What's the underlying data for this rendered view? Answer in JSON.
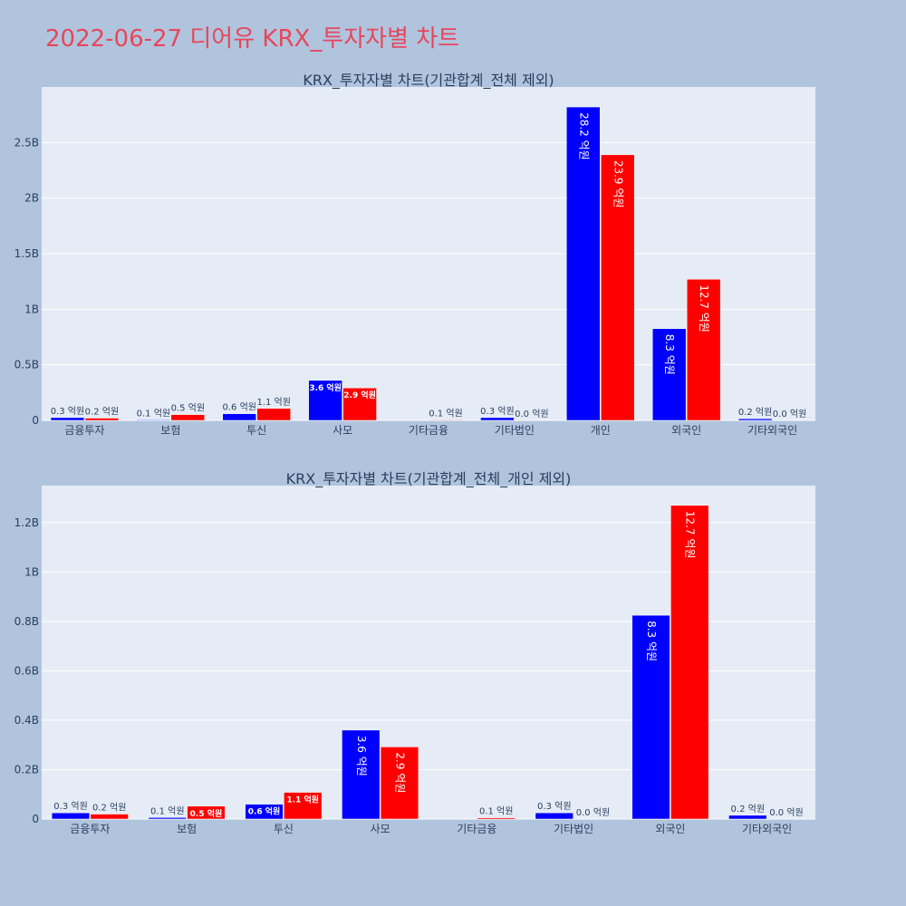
{
  "page": {
    "title": "2022-06-27 디어유 KRX_투자자별 차트",
    "title_color": "#e8465a",
    "background": "#b0c4de"
  },
  "colors": {
    "plot_bg": "#e5ecf6",
    "grid": "#ffffff",
    "text": "#2a3f5f",
    "buy": "#0000ff",
    "sell": "#ff0000"
  },
  "chart_data": [
    {
      "type": "bar",
      "title": "KRX_투자자별 차트(기관합계_전체 제외)",
      "categories": [
        "금융투자",
        "보험",
        "투신",
        "사모",
        "기타금융",
        "기타법인",
        "개인",
        "외국인",
        "기타외국인"
      ],
      "series": [
        {
          "color": "#0000ff",
          "values": [
            25000000,
            6000000,
            60000000,
            360000000,
            0,
            25000000,
            2820000000,
            825000000,
            15000000
          ],
          "labels": [
            "0.3 억원",
            "0.1 억원",
            "0.6 억원",
            "3.6 억원",
            "",
            "0.3 억원",
            "28.2 억원",
            "8.3 억원",
            "0.2 억원"
          ]
        },
        {
          "color": "#ff0000",
          "values": [
            20000000,
            52000000,
            108000000,
            292000000,
            5000000,
            0,
            2390000000,
            1270000000,
            0
          ],
          "labels": [
            "0.2 억원",
            "0.5 억원",
            "1.1 억원",
            "2.9 억원",
            "0.1 억원",
            "0.0 억원",
            "23.9 억원",
            "12.7 억원",
            "0.0 억원"
          ]
        }
      ],
      "ylim": [
        0,
        3000000000
      ],
      "yticks": [
        0,
        500000000,
        1000000000,
        1500000000,
        2000000000,
        2500000000
      ],
      "ytick_labels": [
        "0",
        "0.5B",
        "1B",
        "1.5B",
        "2B",
        "2.5B"
      ],
      "grid": true
    },
    {
      "type": "bar",
      "title": "KRX_투자자별 차트(기관합계_전체_개인 제외)",
      "categories": [
        "금융투자",
        "보험",
        "투신",
        "사모",
        "기타금융",
        "기타법인",
        "외국인",
        "기타외국인"
      ],
      "series": [
        {
          "color": "#0000ff",
          "values": [
            25000000,
            6000000,
            60000000,
            360000000,
            0,
            25000000,
            825000000,
            15000000
          ],
          "labels": [
            "0.3 억원",
            "0.1 억원",
            "0.6 억원",
            "3.6 억원",
            "",
            "0.3 억원",
            "8.3 억원",
            "0.2 억원"
          ]
        },
        {
          "color": "#ff0000",
          "values": [
            20000000,
            52000000,
            108000000,
            292000000,
            5000000,
            0,
            1270000000,
            0
          ],
          "labels": [
            "0.2 억원",
            "0.5 억원",
            "1.1 억원",
            "2.9 억원",
            "0.1 억원",
            "0.0 억원",
            "12.7 억원",
            "0.0 억원"
          ]
        }
      ],
      "ylim": [
        0,
        1350000000
      ],
      "yticks": [
        0,
        200000000,
        400000000,
        600000000,
        800000000,
        1000000000,
        1200000000
      ],
      "ytick_labels": [
        "0",
        "0.2B",
        "0.4B",
        "0.6B",
        "0.8B",
        "1B",
        "1.2B"
      ],
      "grid": true
    }
  ]
}
